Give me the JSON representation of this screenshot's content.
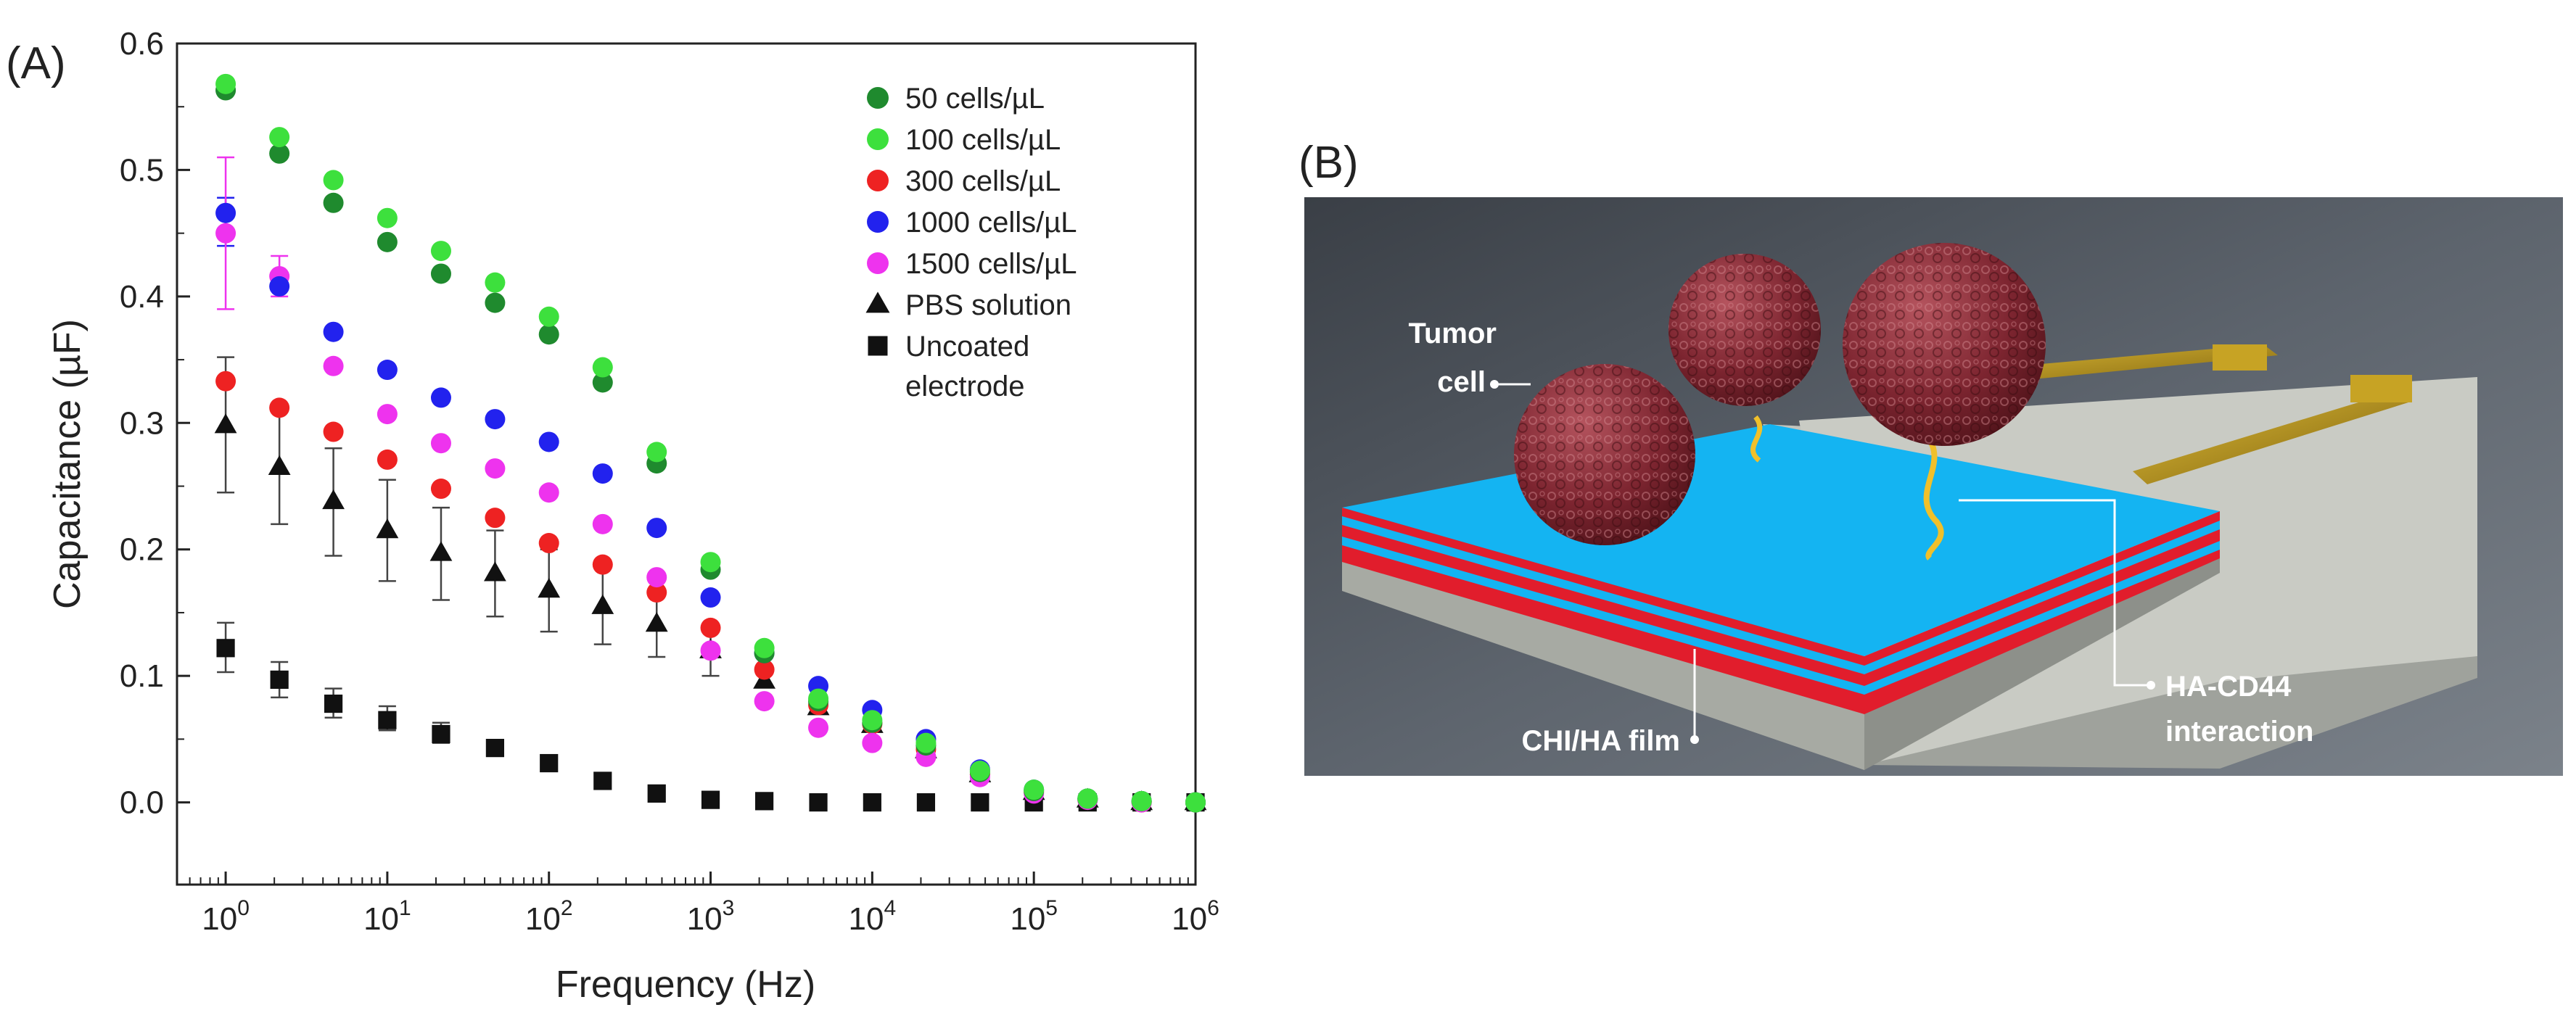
{
  "panel_a_label": "(A)",
  "panel_b_label": "(B)",
  "chart_data": {
    "type": "scatter",
    "x": [
      1,
      2.15,
      4.64,
      10,
      21.5,
      46.4,
      100,
      215,
      464,
      1000,
      2150,
      4640,
      10000,
      21500,
      46400,
      100000,
      215000,
      464000,
      1000000
    ],
    "xlabel": "Frequency (Hz)",
    "ylabel": "Capacitance (µF)",
    "xscale": "log",
    "xlim": [
      0.5,
      1000000
    ],
    "ylim": [
      -0.065,
      0.6
    ],
    "x_tick_labels": [
      {
        "base": "10",
        "exp": "0",
        "value": 1
      },
      {
        "base": "10",
        "exp": "1",
        "value": 10
      },
      {
        "base": "10",
        "exp": "2",
        "value": 100
      },
      {
        "base": "10",
        "exp": "3",
        "value": 1000
      },
      {
        "base": "10",
        "exp": "4",
        "value": 10000
      },
      {
        "base": "10",
        "exp": "5",
        "value": 100000
      },
      {
        "base": "10",
        "exp": "6",
        "value": 1000000
      }
    ],
    "y_ticks": [
      {
        "value": 0.0,
        "label": "0.0"
      },
      {
        "value": 0.1,
        "label": "0.1"
      },
      {
        "value": 0.2,
        "label": "0.2"
      },
      {
        "value": 0.3,
        "label": "0.3"
      },
      {
        "value": 0.4,
        "label": "0.4"
      },
      {
        "value": 0.5,
        "label": "0.5"
      },
      {
        "value": 0.6,
        "label": "0.6"
      }
    ],
    "grid": false,
    "legend_position": "top-right",
    "series": [
      {
        "name": "50 cells/µL",
        "marker": "circle",
        "color": "#1f8a2e",
        "values": [
          0.563,
          0.513,
          0.474,
          0.443,
          0.418,
          0.395,
          0.37,
          0.332,
          0.268,
          0.184,
          0.118,
          0.08,
          0.063,
          0.045,
          0.024,
          0.009,
          0.003,
          0.001,
          0.0
        ]
      },
      {
        "name": "100 cells/µL",
        "marker": "circle",
        "color": "#3de03d",
        "values": [
          0.568,
          0.526,
          0.492,
          0.462,
          0.436,
          0.411,
          0.384,
          0.344,
          0.277,
          0.19,
          0.122,
          0.082,
          0.065,
          0.047,
          0.025,
          0.01,
          0.003,
          0.001,
          0.0
        ]
      },
      {
        "name": "300 cells/µL",
        "marker": "circle",
        "color": "#ee2222",
        "values": [
          0.333,
          0.312,
          0.293,
          0.271,
          0.248,
          0.225,
          0.205,
          0.188,
          0.166,
          0.138,
          0.105,
          0.077,
          0.062,
          0.042,
          0.022,
          0.008,
          0.002,
          0.0,
          0.0
        ]
      },
      {
        "name": "1000 cells/µL",
        "marker": "circle",
        "color": "#2222ee",
        "values": [
          0.466,
          0.408,
          0.372,
          0.342,
          0.32,
          0.303,
          0.285,
          0.26,
          0.217,
          0.162,
          0.118,
          0.092,
          0.073,
          0.05,
          0.026,
          0.01,
          0.003,
          0.001,
          0.0
        ]
      },
      {
        "name": "1500 cells/µL",
        "marker": "circle",
        "color": "#ee33ee",
        "values": [
          0.45,
          0.416,
          0.345,
          0.307,
          0.284,
          0.264,
          0.245,
          0.22,
          0.178,
          0.12,
          0.08,
          0.059,
          0.047,
          0.036,
          0.02,
          0.007,
          0.002,
          0.0,
          0.0
        ]
      },
      {
        "name": "PBS solution",
        "marker": "triangle",
        "color": "#111111",
        "values": [
          0.298,
          0.265,
          0.238,
          0.215,
          0.197,
          0.181,
          0.168,
          0.155,
          0.141,
          0.12,
          0.096,
          0.075,
          0.061,
          0.041,
          0.022,
          0.008,
          0.002,
          0.0,
          0.0
        ]
      },
      {
        "name": "Uncoated electrode",
        "marker": "square",
        "color": "#111111",
        "values": [
          0.122,
          0.097,
          0.078,
          0.065,
          0.054,
          0.043,
          0.031,
          0.017,
          0.007,
          0.002,
          0.001,
          0.0,
          0.0,
          0.0,
          0.0,
          0.0,
          0.0,
          0.0,
          0.0
        ]
      }
    ],
    "error_bars": [
      {
        "series": "1000 cells/µL",
        "point_index": 0,
        "lower": 0.44,
        "upper": 0.478
      },
      {
        "series": "1500 cells/µL",
        "point_index": 0,
        "lower": 0.39,
        "upper": 0.51
      },
      {
        "series": "1500 cells/µL",
        "point_index": 1,
        "lower": 0.4,
        "upper": 0.432
      },
      {
        "series": "PBS solution",
        "point_index": 0,
        "lower": 0.245,
        "upper": 0.352
      },
      {
        "series": "PBS solution",
        "point_index": 1,
        "lower": 0.22,
        "upper": 0.31
      },
      {
        "series": "PBS solution",
        "point_index": 2,
        "lower": 0.195,
        "upper": 0.28
      },
      {
        "series": "PBS solution",
        "point_index": 3,
        "lower": 0.175,
        "upper": 0.255
      },
      {
        "series": "PBS solution",
        "point_index": 4,
        "lower": 0.16,
        "upper": 0.233
      },
      {
        "series": "PBS solution",
        "point_index": 5,
        "lower": 0.147,
        "upper": 0.215
      },
      {
        "series": "PBS solution",
        "point_index": 6,
        "lower": 0.135,
        "upper": 0.2
      },
      {
        "series": "PBS solution",
        "point_index": 7,
        "lower": 0.125,
        "upper": 0.185
      },
      {
        "series": "PBS solution",
        "point_index": 8,
        "lower": 0.115,
        "upper": 0.168
      },
      {
        "series": "PBS solution",
        "point_index": 9,
        "lower": 0.1,
        "upper": 0.14
      },
      {
        "series": "Uncoated electrode",
        "point_index": 0,
        "lower": 0.103,
        "upper": 0.142
      },
      {
        "series": "Uncoated electrode",
        "point_index": 1,
        "lower": 0.083,
        "upper": 0.111
      },
      {
        "series": "Uncoated electrode",
        "point_index": 2,
        "lower": 0.067,
        "upper": 0.09
      },
      {
        "series": "Uncoated electrode",
        "point_index": 3,
        "lower": 0.057,
        "upper": 0.076
      },
      {
        "series": "Uncoated electrode",
        "point_index": 4,
        "lower": 0.047,
        "upper": 0.063
      }
    ]
  },
  "illustration": {
    "labels": {
      "tumor_cell_line1": "Tumor",
      "tumor_cell_line2": "cell",
      "chi_ha_film": "CHI/HA film",
      "ha_cd44_line1": "HA-CD44",
      "ha_cd44_line2": "interaction"
    },
    "colors": {
      "background": "#4f5660",
      "film_top": "#14b4f2",
      "film_red": "#e11d2c",
      "substrate": "#c9cbc4",
      "gold": "#b08d1a",
      "cell": "#8a2a33",
      "linker": "#f0c02a"
    }
  }
}
